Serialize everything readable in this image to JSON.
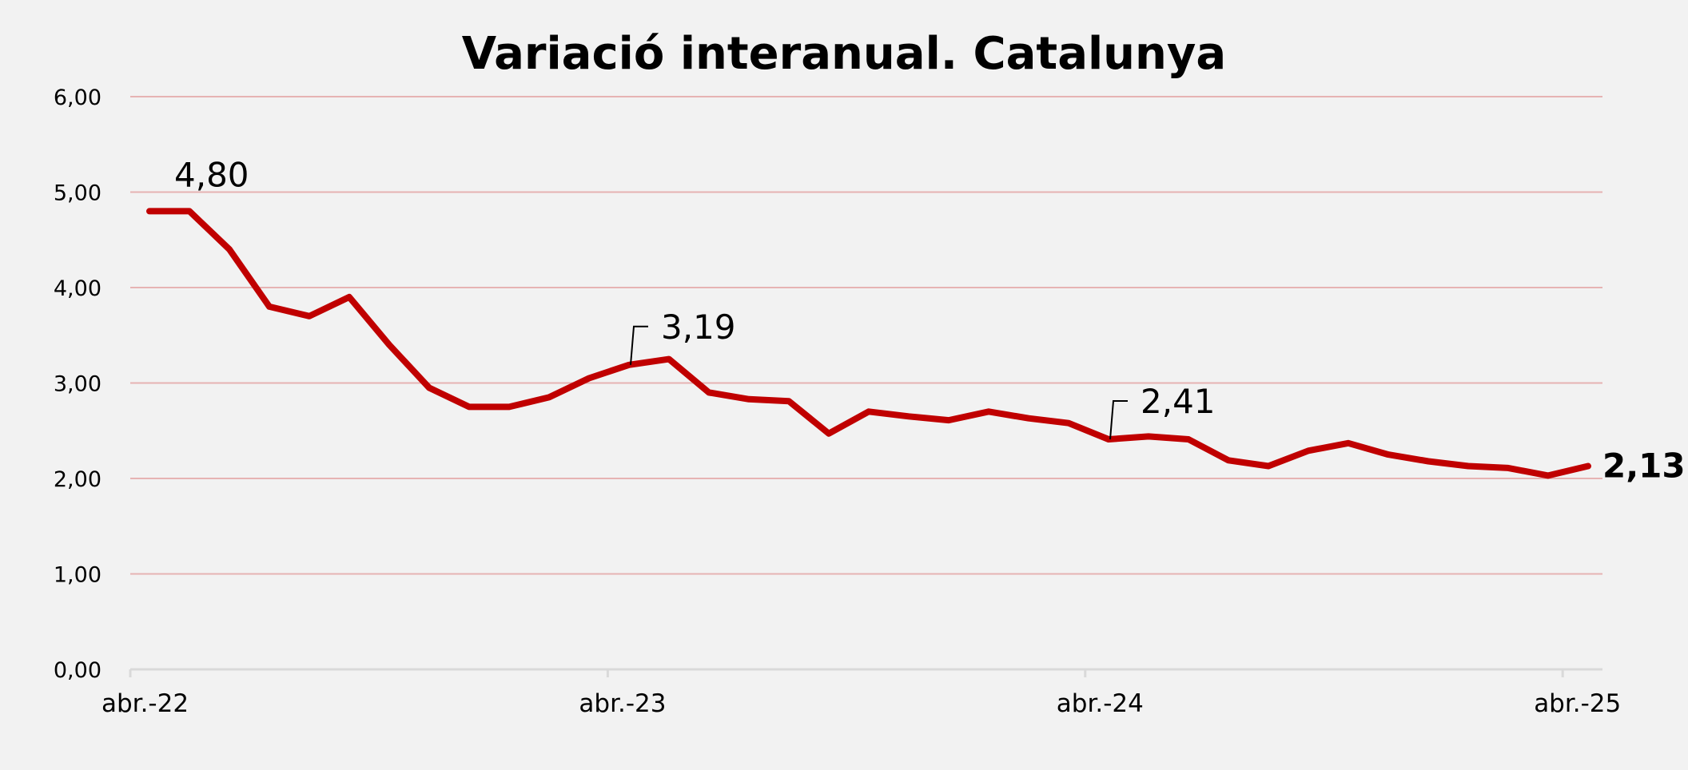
{
  "chart_data": {
    "type": "line",
    "title": "Variació interanual. Catalunya",
    "xlabel": "",
    "ylabel": "",
    "ylim": [
      0,
      6
    ],
    "y_ticks": [
      "0,00",
      "1,00",
      "2,00",
      "3,00",
      "4,00",
      "5,00",
      "6,00"
    ],
    "x_tick_labels": [
      "abr.-22",
      "abr.-23",
      "abr.-24",
      "abr.-25"
    ],
    "x_tick_indices": [
      0,
      12,
      24,
      36
    ],
    "grid": true,
    "legend": "none",
    "colors": {
      "line": "#c00000",
      "grid": "#e6b3b3",
      "axis": "#d9d9d9",
      "background": "#f2f2f2"
    },
    "series": [
      {
        "values": [
          4.8,
          4.8,
          4.4,
          3.8,
          3.7,
          3.9,
          3.4,
          2.95,
          2.75,
          2.75,
          2.85,
          3.05,
          3.19,
          3.25,
          2.9,
          2.83,
          2.81,
          2.47,
          2.7,
          2.65,
          2.61,
          2.7,
          2.63,
          2.58,
          2.41,
          2.44,
          2.41,
          2.19,
          2.13,
          2.29,
          2.37,
          2.25,
          2.18,
          2.13,
          2.11,
          2.03,
          2.13
        ]
      }
    ],
    "data_labels": [
      {
        "index": 1,
        "text": "4,80",
        "bold": false,
        "leader": false
      },
      {
        "index": 12,
        "text": "3,19",
        "bold": false,
        "leader": true
      },
      {
        "index": 24,
        "text": "2,41",
        "bold": false,
        "leader": true
      },
      {
        "index": 36,
        "text": "2,13",
        "bold": true,
        "leader": false
      }
    ]
  }
}
